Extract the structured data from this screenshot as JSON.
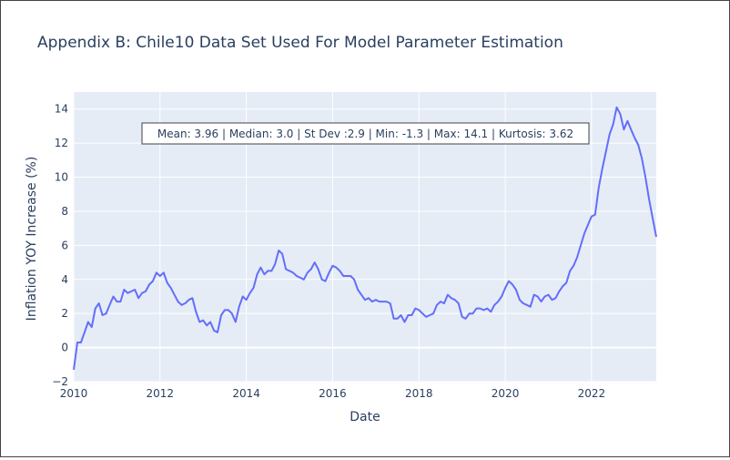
{
  "chart_data": {
    "type": "line",
    "title": "Appendix B: Chile10 Data Set Used For Model Parameter Estimation",
    "xlabel": "Date",
    "ylabel": "Inflation YOY Increase (%)",
    "xlim": [
      "2010-01",
      "2023-07"
    ],
    "ylim": [
      -2,
      15
    ],
    "x_ticks": [
      "2010",
      "2012",
      "2014",
      "2016",
      "2018",
      "2020",
      "2022"
    ],
    "y_ticks": [
      "−2",
      "0",
      "2",
      "4",
      "6",
      "8",
      "10",
      "12",
      "14"
    ],
    "grid": true,
    "annotation": "Mean: 3.96 | Median: 3.0 | St Dev :2.9 | Min: -1.3 | Max: 14.1 | Kurtosis: 3.62",
    "colors": {
      "line": "#636efa",
      "plot_bg": "#e5ecf6",
      "grid": "#ffffff",
      "text": "#2a3f5f"
    },
    "series": [
      {
        "x": [
          "2010-01",
          "2010-02",
          "2010-03",
          "2010-04",
          "2010-05",
          "2010-06",
          "2010-07",
          "2010-08",
          "2010-09",
          "2010-10",
          "2010-11",
          "2010-12",
          "2011-01",
          "2011-02",
          "2011-03",
          "2011-04",
          "2011-05",
          "2011-06",
          "2011-07",
          "2011-08",
          "2011-09",
          "2011-10",
          "2011-11",
          "2011-12",
          "2012-01",
          "2012-02",
          "2012-03",
          "2012-04",
          "2012-05",
          "2012-06",
          "2012-07",
          "2012-08",
          "2012-09",
          "2012-10",
          "2012-11",
          "2012-12",
          "2013-01",
          "2013-02",
          "2013-03",
          "2013-04",
          "2013-05",
          "2013-06",
          "2013-07",
          "2013-08",
          "2013-09",
          "2013-10",
          "2013-11",
          "2013-12",
          "2014-01",
          "2014-02",
          "2014-03",
          "2014-04",
          "2014-05",
          "2014-06",
          "2014-07",
          "2014-08",
          "2014-09",
          "2014-10",
          "2014-11",
          "2014-12",
          "2015-01",
          "2015-02",
          "2015-03",
          "2015-04",
          "2015-05",
          "2015-06",
          "2015-07",
          "2015-08",
          "2015-09",
          "2015-10",
          "2015-11",
          "2015-12",
          "2016-01",
          "2016-02",
          "2016-03",
          "2016-04",
          "2016-05",
          "2016-06",
          "2016-07",
          "2016-08",
          "2016-09",
          "2016-10",
          "2016-11",
          "2016-12",
          "2017-01",
          "2017-02",
          "2017-03",
          "2017-04",
          "2017-05",
          "2017-06",
          "2017-07",
          "2017-08",
          "2017-09",
          "2017-10",
          "2017-11",
          "2017-12",
          "2018-01",
          "2018-02",
          "2018-03",
          "2018-04",
          "2018-05",
          "2018-06",
          "2018-07",
          "2018-08",
          "2018-09",
          "2018-10",
          "2018-11",
          "2018-12",
          "2019-01",
          "2019-02",
          "2019-03",
          "2019-04",
          "2019-05",
          "2019-06",
          "2019-07",
          "2019-08",
          "2019-09",
          "2019-10",
          "2019-11",
          "2019-12",
          "2020-01",
          "2020-02",
          "2020-03",
          "2020-04",
          "2020-05",
          "2020-06",
          "2020-07",
          "2020-08",
          "2020-09",
          "2020-10",
          "2020-11",
          "2020-12",
          "2021-01",
          "2021-02",
          "2021-03",
          "2021-04",
          "2021-05",
          "2021-06",
          "2021-07",
          "2021-08",
          "2021-09",
          "2021-10",
          "2021-11",
          "2021-12",
          "2022-01",
          "2022-02",
          "2022-03",
          "2022-04",
          "2022-05",
          "2022-06",
          "2022-07",
          "2022-08",
          "2022-09",
          "2022-10",
          "2022-11",
          "2022-12",
          "2023-01",
          "2023-02",
          "2023-03",
          "2023-04",
          "2023-05",
          "2023-06",
          "2023-07"
        ],
        "y": [
          -1.3,
          0.3,
          0.3,
          0.9,
          1.5,
          1.2,
          2.3,
          2.6,
          1.9,
          2.0,
          2.5,
          3.0,
          2.7,
          2.7,
          3.4,
          3.2,
          3.3,
          3.4,
          2.9,
          3.2,
          3.3,
          3.7,
          3.9,
          4.4,
          4.2,
          4.4,
          3.8,
          3.5,
          3.1,
          2.7,
          2.5,
          2.6,
          2.8,
          2.9,
          2.1,
          1.5,
          1.6,
          1.3,
          1.5,
          1.0,
          0.9,
          1.9,
          2.2,
          2.2,
          2.0,
          1.5,
          2.4,
          3.0,
          2.8,
          3.2,
          3.5,
          4.3,
          4.7,
          4.3,
          4.5,
          4.5,
          4.9,
          5.7,
          5.5,
          4.6,
          4.5,
          4.4,
          4.2,
          4.1,
          4.0,
          4.4,
          4.6,
          5.0,
          4.6,
          4.0,
          3.9,
          4.4,
          4.8,
          4.7,
          4.5,
          4.2,
          4.2,
          4.2,
          4.0,
          3.4,
          3.1,
          2.8,
          2.9,
          2.7,
          2.8,
          2.7,
          2.7,
          2.7,
          2.6,
          1.7,
          1.7,
          1.9,
          1.5,
          1.9,
          1.9,
          2.3,
          2.2,
          2.0,
          1.8,
          1.9,
          2.0,
          2.5,
          2.7,
          2.6,
          3.1,
          2.9,
          2.8,
          2.6,
          1.8,
          1.7,
          2.0,
          2.0,
          2.3,
          2.3,
          2.2,
          2.3,
          2.1,
          2.5,
          2.7,
          3.0,
          3.5,
          3.9,
          3.7,
          3.4,
          2.8,
          2.6,
          2.5,
          2.4,
          3.1,
          3.0,
          2.7,
          3.0,
          3.1,
          2.8,
          2.9,
          3.3,
          3.6,
          3.8,
          4.5,
          4.8,
          5.3,
          6.0,
          6.7,
          7.2,
          7.7,
          7.8,
          9.4,
          10.5,
          11.5,
          12.5,
          13.1,
          14.1,
          13.7,
          12.8,
          13.3,
          12.8,
          12.3,
          11.9,
          11.1,
          10.0,
          8.7,
          7.6,
          6.5
        ]
      }
    ]
  }
}
